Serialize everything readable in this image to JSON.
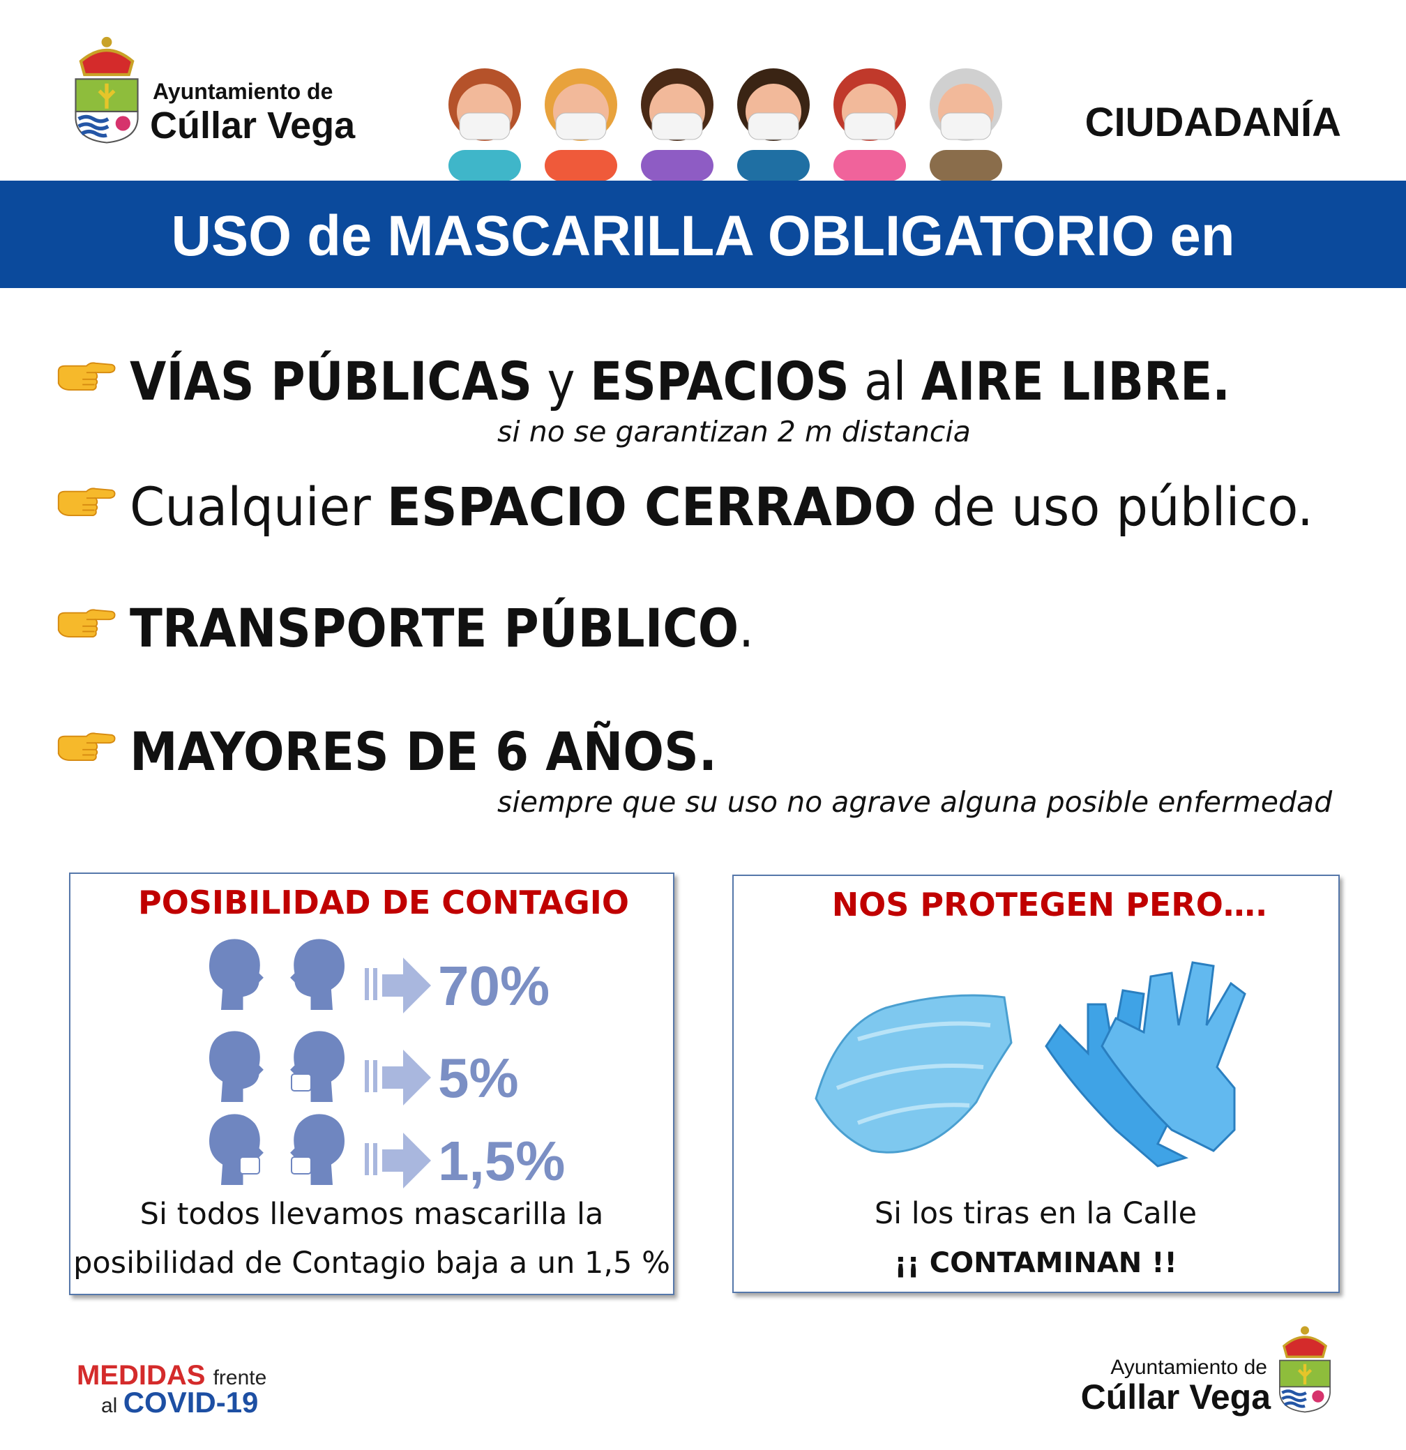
{
  "header": {
    "logo_line1": "Ayuntamiento de",
    "logo_line2": "Cúllar Vega",
    "section": "CIUDADANÍA"
  },
  "banner": "USO de MASCARILLA OBLIGATORIO en",
  "items": [
    {
      "segments": [
        {
          "text": "VÍAS PÚBLICAS",
          "bold": true
        },
        {
          "text": " y ",
          "bold": false
        },
        {
          "text": "ESPACIOS",
          "bold": true
        },
        {
          "text": " al ",
          "bold": false
        },
        {
          "text": "AIRE LIBRE.",
          "bold": true
        }
      ],
      "note": "si no se garantizan 2 m distancia"
    },
    {
      "segments": [
        {
          "text": "Cualquier ",
          "bold": false
        },
        {
          "text": "ESPACIO CERRADO",
          "bold": true
        },
        {
          "text": " de uso público.",
          "bold": false
        }
      ]
    },
    {
      "segments": [
        {
          "text": "TRANSPORTE PÚBLICO",
          "bold": true
        },
        {
          "text": ".",
          "bold": false
        }
      ]
    },
    {
      "segments": [
        {
          "text": "MAYORES DE 6 AÑOS.",
          "bold": true
        }
      ],
      "note": "siempre que su uso no agrave alguna posible enfermedad"
    }
  ],
  "contagion": {
    "title": "POSIBILIDAD DE CONTAGIO",
    "rows": [
      "70%",
      "5%",
      "1,5%"
    ],
    "caption": [
      "Si todos llevamos mascarilla la",
      "posibilidad de Contagio baja a un 1,5 %"
    ]
  },
  "protect": {
    "title": "NOS PROTEGEN PERO….",
    "caption": [
      "Si los tiras en la Calle",
      "¡¡ CONTAMINAN !!"
    ]
  },
  "footer": {
    "medidas": "MEDIDAS",
    "frente": "frente",
    "al": "al",
    "covid": "COVID-19",
    "logo_line1": "Ayuntamiento de",
    "logo_line2": "Cúllar Vega"
  }
}
